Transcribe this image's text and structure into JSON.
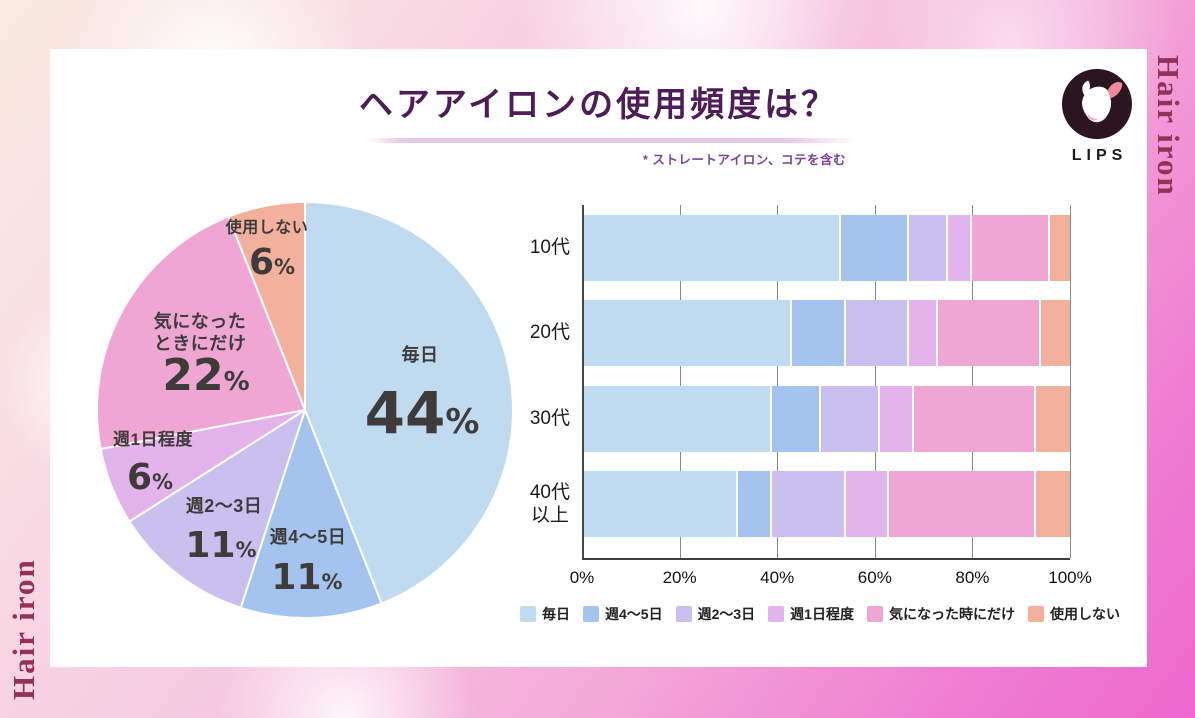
{
  "page": {
    "title": "ヘアアイロンの使用頻度は？",
    "note": "* ストレートアイロン、コテを含む",
    "side_text_right": "Hair iron",
    "side_text_left": "Hair iron",
    "logo": {
      "brand": "LIPS"
    }
  },
  "colors": {
    "palette": [
      "#c0daf0",
      "#a4c4ef",
      "#c9c0ef",
      "#e3b3eb",
      "#efa6d3",
      "#f2b09d"
    ],
    "title": "#4e1c58",
    "note": "#7c4099",
    "underline": "#eac6e6",
    "side_text": "#943158",
    "number_text": "#3f3b3a",
    "background_top_left": "#f9eadf",
    "background_bottom_right": "#ed68cd"
  },
  "chart_data": [
    {
      "type": "pie",
      "title": "ヘアアイロンの使用頻度は？",
      "labels": [
        "毎日",
        "週4〜5日",
        "週2〜3日",
        "週1日程度",
        "気になったときにだけ",
        "使用しない"
      ],
      "labels_display": [
        "毎日",
        "週4〜5日",
        "週2〜3日",
        "週1日程度",
        "気になった\nときにだけ",
        "使用しない"
      ],
      "values": [
        44,
        11,
        11,
        6,
        22,
        6
      ],
      "unit": "%",
      "start_angle_deg": 0,
      "direction": "clockwise"
    },
    {
      "type": "bar",
      "subtype": "horizontal-stacked",
      "categories": [
        "10代",
        "20代",
        "30代",
        "40代以上"
      ],
      "categories_display": [
        "10代",
        "20代",
        "30代",
        "40代\n以上"
      ],
      "series": [
        {
          "name": "毎日",
          "values": [
            53,
            43,
            39,
            32
          ]
        },
        {
          "name": "週4〜5日",
          "values": [
            14,
            11,
            10,
            7
          ]
        },
        {
          "name": "週2〜3日",
          "values": [
            8,
            13,
            12,
            15
          ]
        },
        {
          "name": "週1日程度",
          "values": [
            5,
            6,
            7,
            9
          ]
        },
        {
          "name": "気になった時にだけ",
          "values": [
            16,
            21,
            25,
            30
          ]
        },
        {
          "name": "使用しない",
          "values": [
            4,
            6,
            7,
            7
          ]
        }
      ],
      "x_ticks": [
        "0%",
        "20%",
        "40%",
        "60%",
        "80%",
        "100%"
      ],
      "xlim": [
        0,
        100
      ],
      "grid": true,
      "legend": [
        "毎日",
        "週4〜5日",
        "週2〜3日",
        "週1日程度",
        "気になった時にだけ",
        "使用しない"
      ],
      "legend_position": "bottom"
    }
  ]
}
